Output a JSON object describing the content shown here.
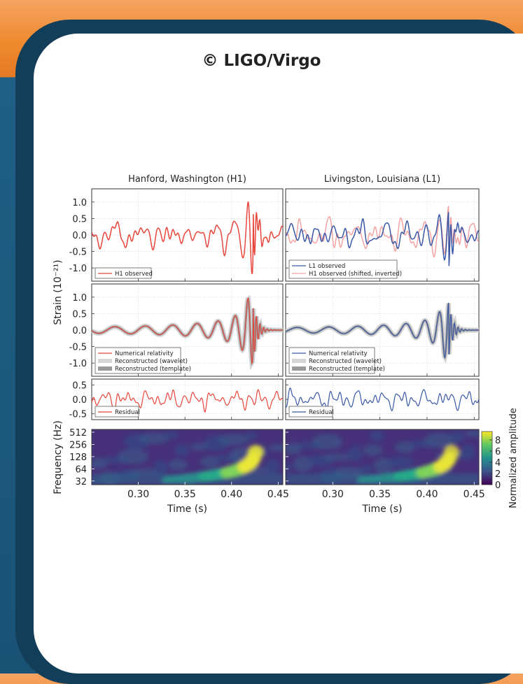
{
  "credit": "© LIGO/Virgo",
  "chart_data": {
    "type": "line",
    "columns": [
      {
        "title": "Hanford, Washington (H1)",
        "color": "#e8463c"
      },
      {
        "title": "Livingston, Louisiana (L1)",
        "color": "#3a58a6"
      }
    ],
    "strain_ylabel": "Strain (10⁻²¹)",
    "frequency_ylabel": "Frequency (Hz)",
    "xlabel": "Time (s)",
    "xlim": [
      0.25,
      0.455
    ],
    "xticks": [
      "0.30",
      "0.35",
      "0.40",
      "0.45"
    ],
    "xtick_values": [
      0.3,
      0.35,
      0.4,
      0.45
    ],
    "panels": [
      {
        "ylim": [
          -1.4,
          1.4
        ],
        "yticks": [
          {
            "v": 1.0,
            "label": "1.0"
          },
          {
            "v": 0.5,
            "label": "0.5"
          },
          {
            "v": 0.0,
            "label": "0.0"
          },
          {
            "v": -0.5,
            "label": "-0.5"
          },
          {
            "v": -1.0,
            "label": "-1.0"
          }
        ],
        "legend_left": [
          "H1 observed"
        ],
        "legend_right": [
          "L1 observed",
          "H1 observed (shifted, inverted)"
        ]
      },
      {
        "ylim": [
          -1.4,
          1.4
        ],
        "yticks": [
          {
            "v": 1.0,
            "label": "1.0"
          },
          {
            "v": 0.5,
            "label": "0.5"
          },
          {
            "v": 0.0,
            "label": "0.0"
          },
          {
            "v": -0.5,
            "label": "-0.5"
          },
          {
            "v": -1.0,
            "label": "-1.0"
          }
        ],
        "legend": [
          "Numerical relativity",
          "Reconstructed (wavelet)",
          "Reconstructed (template)"
        ]
      },
      {
        "ylim": [
          -0.7,
          0.7
        ],
        "yticks": [
          {
            "v": 0.5,
            "label": "0.5"
          },
          {
            "v": 0.0,
            "label": "0.0"
          },
          {
            "v": -0.5,
            "label": "-0.5"
          }
        ],
        "legend": [
          "Residual"
        ]
      }
    ],
    "spectrogram": {
      "yticks": [
        "512",
        "256",
        "128",
        "64",
        "32"
      ],
      "ytick_values": [
        512,
        256,
        128,
        64,
        32
      ],
      "ylim": [
        26,
        600
      ],
      "colorbar_label": "Normalized amplitude",
      "colorbar_ticks": [
        "8",
        "6",
        "4",
        "2",
        "0"
      ],
      "colorbar_values": [
        8,
        6,
        4,
        2,
        0
      ],
      "colorbar_range": [
        0,
        9.5
      ],
      "colormap": [
        "#440154",
        "#3b528b",
        "#21918c",
        "#5ec962",
        "#fde725"
      ]
    }
  }
}
